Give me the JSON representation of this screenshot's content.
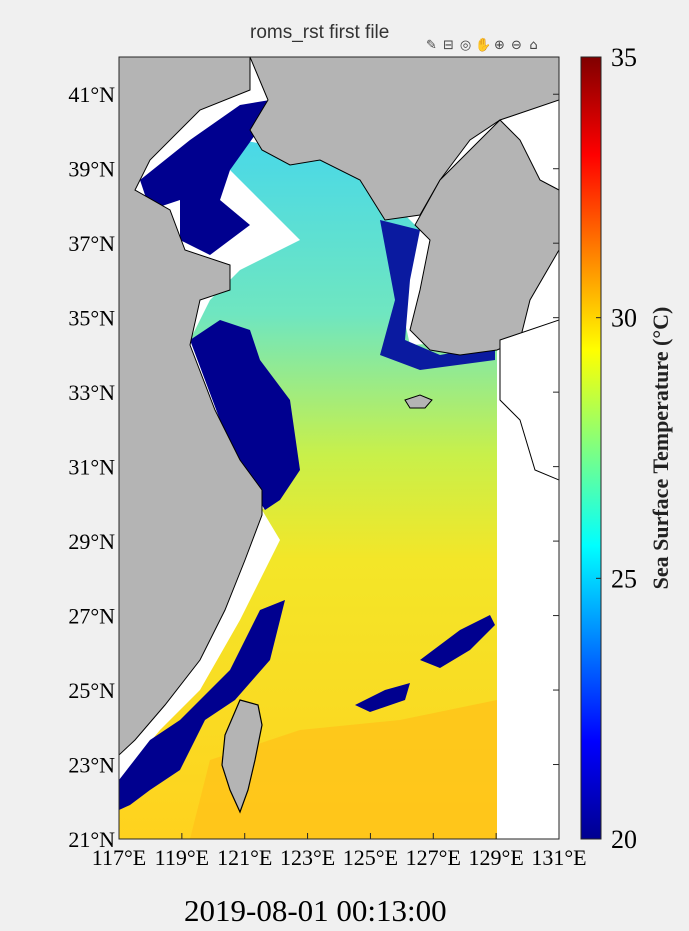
{
  "figure": {
    "title": "roms_rst first file",
    "timestamp": "2019-08-01 00:13:00",
    "toolbar": [
      {
        "name": "brush-icon",
        "glyph": "✎"
      },
      {
        "name": "data-tips-icon",
        "glyph": "⊟"
      },
      {
        "name": "rotate-icon",
        "glyph": "◎"
      },
      {
        "name": "pan-hand-icon",
        "glyph": "✋"
      },
      {
        "name": "zoom-in-icon",
        "glyph": "⊕"
      },
      {
        "name": "zoom-out-icon",
        "glyph": "⊖"
      },
      {
        "name": "home-icon",
        "glyph": "⌂"
      }
    ]
  },
  "chart_data": {
    "type": "heatmap",
    "title": "roms_rst first file",
    "xlim": [
      117,
      131
    ],
    "ylim": [
      21,
      42
    ],
    "x_ticks": [
      117,
      119,
      121,
      123,
      125,
      127,
      129,
      131
    ],
    "x_tick_labels": [
      "117°E",
      "119°E",
      "121°E",
      "123°E",
      "125°E",
      "127°E",
      "129°E",
      "131°E"
    ],
    "y_ticks": [
      21,
      23,
      25,
      27,
      29,
      31,
      33,
      35,
      37,
      39,
      41
    ],
    "y_tick_labels": [
      "21°N",
      "23°N",
      "25°N",
      "27°N",
      "29°N",
      "31°N",
      "33°N",
      "35°N",
      "37°N",
      "39°N",
      "41°N"
    ],
    "colorbar": {
      "label": "Sea Surface Temperature (°C)",
      "clim": [
        20,
        35
      ],
      "ticks": [
        20,
        25,
        30,
        35
      ],
      "tick_labels": [
        "20",
        "25",
        "30",
        "35"
      ],
      "colormap": [
        "#00008f",
        "#0000ff",
        "#0080ff",
        "#00ffff",
        "#80ff80",
        "#ffff00",
        "#ff8000",
        "#ff0000",
        "#800000"
      ]
    },
    "land_color": "#b4b4b4",
    "grid": false
  }
}
